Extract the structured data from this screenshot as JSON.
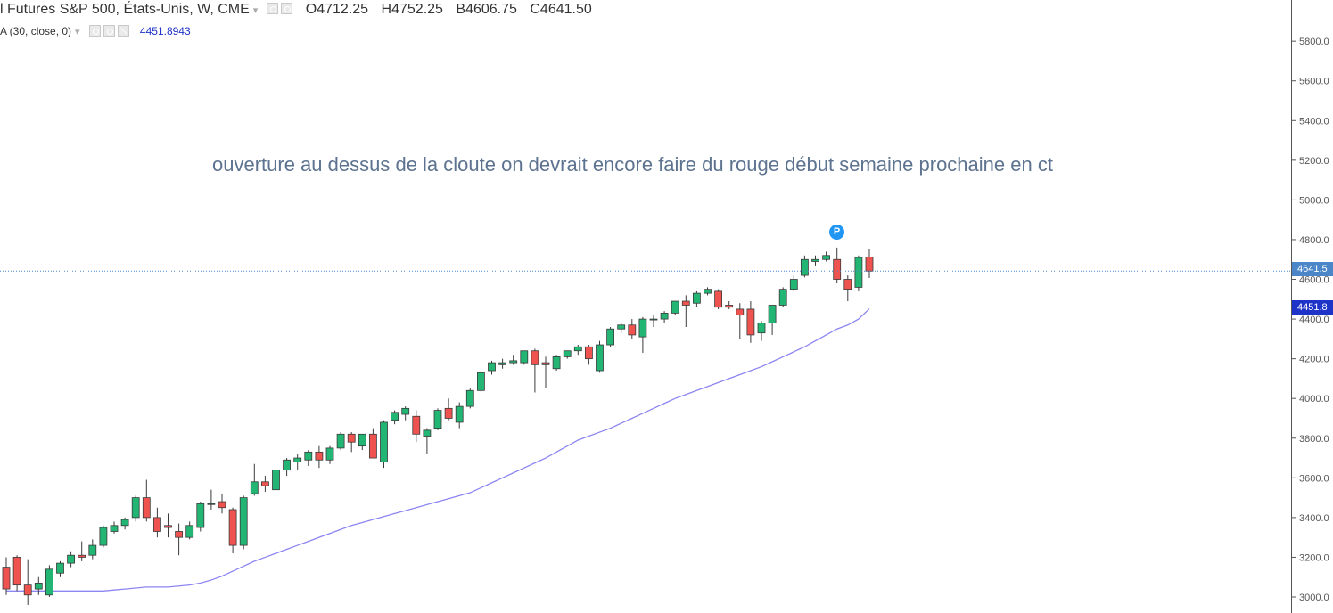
{
  "legend": {
    "symbol": "l Futures S&P 500, États-Unis, W, CME",
    "open_label": "O",
    "open": "4712.25",
    "high_label": "H",
    "high": "4752.25",
    "low_label": "B",
    "low": "4606.75",
    "close_label": "C",
    "close": "4641.50",
    "indicator": "A (30, close, 0)",
    "indicator_value": "4451.8943"
  },
  "annotation": "ouverture au dessus de la cloute on devrait encore faire du rouge début semaine prochaine en ct",
  "marker_label": "P",
  "price_tags": {
    "last": "4641.5",
    "ma": "4451.8"
  },
  "colors": {
    "up": "#26a69a",
    "up_fill": "#22b573",
    "down": "#ef5350",
    "ma_line": "#8c86f2",
    "last_price_line": "#4a86c8"
  },
  "chart_data": {
    "type": "candlestick",
    "title": "",
    "ylim": [
      2950,
      6000
    ],
    "y_ticks": [
      3000,
      3200,
      3400,
      3600,
      3800,
      4000,
      4200,
      4400,
      4600,
      4800,
      5000,
      5200,
      5400,
      5600,
      5800
    ],
    "y_tick_labels": [
      "3000.0",
      "3200.0",
      "3400.0",
      "3600.0",
      "3800.0",
      "4000.0",
      "4200.0",
      "4400.0",
      "4600.0",
      "4800.0",
      "5000.0",
      "5200.0",
      "5400.0",
      "5600.0",
      "5800.0"
    ],
    "last_price": 4641.5,
    "ma_last": 4451.8,
    "candles": [
      [
        3150,
        3200,
        3010,
        3040
      ],
      [
        3200,
        3210,
        3030,
        3060
      ],
      [
        3060,
        3190,
        2960,
        3010
      ],
      [
        3040,
        3100,
        3010,
        3070
      ],
      [
        3010,
        3160,
        3000,
        3140
      ],
      [
        3120,
        3180,
        3100,
        3170
      ],
      [
        3170,
        3230,
        3150,
        3210
      ],
      [
        3210,
        3280,
        3180,
        3200
      ],
      [
        3210,
        3290,
        3190,
        3260
      ],
      [
        3260,
        3360,
        3250,
        3350
      ],
      [
        3330,
        3380,
        3320,
        3360
      ],
      [
        3360,
        3400,
        3340,
        3390
      ],
      [
        3400,
        3510,
        3380,
        3500
      ],
      [
        3500,
        3590,
        3380,
        3400
      ],
      [
        3400,
        3450,
        3300,
        3330
      ],
      [
        3360,
        3420,
        3300,
        3350
      ],
      [
        3330,
        3370,
        3210,
        3300
      ],
      [
        3300,
        3380,
        3290,
        3360
      ],
      [
        3350,
        3480,
        3330,
        3470
      ],
      [
        3470,
        3540,
        3440,
        3470
      ],
      [
        3480,
        3520,
        3420,
        3450
      ],
      [
        3440,
        3450,
        3220,
        3260
      ],
      [
        3260,
        3510,
        3240,
        3500
      ],
      [
        3520,
        3670,
        3510,
        3580
      ],
      [
        3580,
        3610,
        3530,
        3560
      ],
      [
        3540,
        3660,
        3530,
        3640
      ],
      [
        3640,
        3700,
        3610,
        3690
      ],
      [
        3680,
        3720,
        3640,
        3700
      ],
      [
        3690,
        3740,
        3660,
        3730
      ],
      [
        3730,
        3760,
        3650,
        3690
      ],
      [
        3690,
        3760,
        3670,
        3750
      ],
      [
        3750,
        3830,
        3740,
        3820
      ],
      [
        3820,
        3830,
        3730,
        3780
      ],
      [
        3760,
        3820,
        3740,
        3820
      ],
      [
        3820,
        3850,
        3700,
        3700
      ],
      [
        3680,
        3890,
        3650,
        3880
      ],
      [
        3890,
        3940,
        3870,
        3930
      ],
      [
        3920,
        3960,
        3890,
        3950
      ],
      [
        3910,
        3940,
        3780,
        3820
      ],
      [
        3810,
        3850,
        3720,
        3840
      ],
      [
        3850,
        3950,
        3840,
        3940
      ],
      [
        3950,
        4000,
        3890,
        3900
      ],
      [
        3880,
        3980,
        3850,
        3960
      ],
      [
        3960,
        4050,
        3950,
        4040
      ],
      [
        4040,
        4140,
        4030,
        4130
      ],
      [
        4140,
        4190,
        4120,
        4180
      ],
      [
        4170,
        4200,
        4150,
        4180
      ],
      [
        4180,
        4220,
        4170,
        4190
      ],
      [
        4180,
        4240,
        4170,
        4240
      ],
      [
        4240,
        4250,
        4030,
        4170
      ],
      [
        4180,
        4210,
        4050,
        4170
      ],
      [
        4150,
        4220,
        4140,
        4210
      ],
      [
        4210,
        4240,
        4200,
        4240
      ],
      [
        4240,
        4270,
        4220,
        4260
      ],
      [
        4260,
        4270,
        4170,
        4200
      ],
      [
        4140,
        4290,
        4130,
        4270
      ],
      [
        4270,
        4360,
        4260,
        4350
      ],
      [
        4350,
        4380,
        4330,
        4370
      ],
      [
        4370,
        4400,
        4300,
        4320
      ],
      [
        4310,
        4410,
        4230,
        4400
      ],
      [
        4400,
        4420,
        4360,
        4400
      ],
      [
        4400,
        4440,
        4380,
        4430
      ],
      [
        4430,
        4490,
        4420,
        4490
      ],
      [
        4490,
        4520,
        4360,
        4470
      ],
      [
        4480,
        4540,
        4460,
        4530
      ],
      [
        4530,
        4560,
        4520,
        4550
      ],
      [
        4540,
        4550,
        4450,
        4460
      ],
      [
        4470,
        4490,
        4450,
        4460
      ],
      [
        4450,
        4480,
        4300,
        4420
      ],
      [
        4450,
        4490,
        4280,
        4320
      ],
      [
        4330,
        4390,
        4290,
        4380
      ],
      [
        4380,
        4470,
        4320,
        4470
      ],
      [
        4470,
        4560,
        4460,
        4550
      ],
      [
        4550,
        4620,
        4540,
        4600
      ],
      [
        4620,
        4720,
        4610,
        4700
      ],
      [
        4690,
        4720,
        4670,
        4700
      ],
      [
        4700,
        4740,
        4690,
        4720
      ],
      [
        4700,
        4760,
        4580,
        4600
      ],
      [
        4600,
        4620,
        4490,
        4550
      ],
      [
        4560,
        4720,
        4540,
        4710
      ],
      [
        4712.25,
        4752.25,
        4606.75,
        4641.5
      ]
    ],
    "ma30": [
      3030,
      3030,
      3030,
      3030,
      3030,
      3030,
      3030,
      3030,
      3030,
      3030,
      3035,
      3040,
      3045,
      3050,
      3050,
      3050,
      3055,
      3060,
      3070,
      3085,
      3105,
      3130,
      3155,
      3180,
      3200,
      3220,
      3240,
      3260,
      3280,
      3300,
      3320,
      3340,
      3360,
      3375,
      3390,
      3405,
      3420,
      3435,
      3450,
      3465,
      3480,
      3495,
      3510,
      3525,
      3550,
      3575,
      3600,
      3625,
      3650,
      3675,
      3700,
      3730,
      3760,
      3790,
      3810,
      3830,
      3850,
      3875,
      3900,
      3925,
      3950,
      3975,
      4000,
      4020,
      4040,
      4060,
      4080,
      4100,
      4120,
      4140,
      4160,
      4185,
      4210,
      4235,
      4260,
      4290,
      4320,
      4350,
      4370,
      4400,
      4451.8
    ]
  }
}
